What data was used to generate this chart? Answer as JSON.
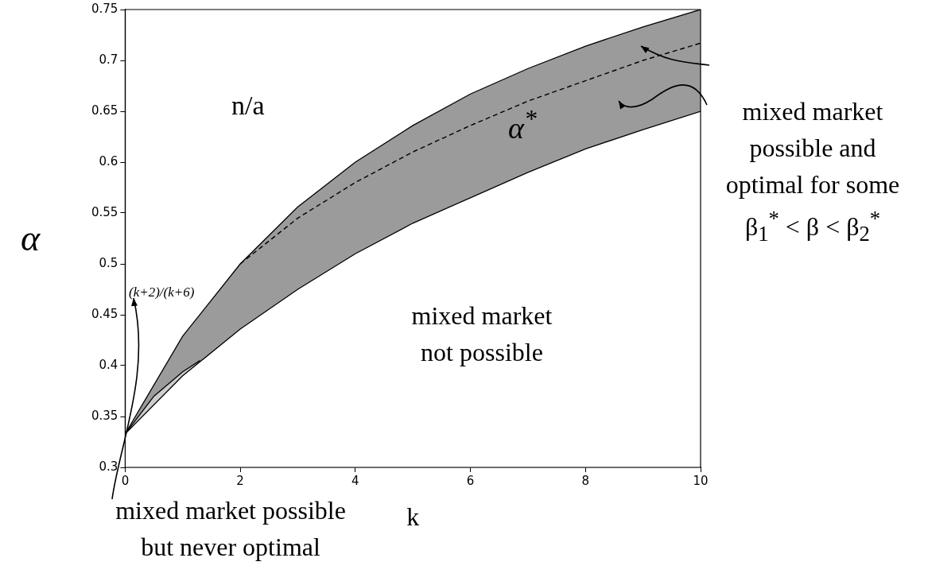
{
  "chart_data": {
    "type": "line",
    "xlabel": "k",
    "ylabel": "α",
    "xlim": [
      0,
      10
    ],
    "ylim": [
      0.3,
      0.75
    ],
    "xticks": [
      0,
      2,
      4,
      6,
      8,
      10
    ],
    "yticks": [
      0.3,
      0.35,
      0.4,
      0.45,
      0.5,
      0.55,
      0.6,
      0.65,
      0.7,
      0.75
    ],
    "grid": false,
    "legend": false,
    "marker": "none",
    "series": [
      {
        "type": "area",
        "color": "#9b9b9b",
        "x": [
          0,
          1,
          2,
          3,
          4,
          5,
          6,
          7,
          8,
          9,
          10
        ],
        "values": [
          0.333,
          0.429,
          0.5,
          0.556,
          0.6,
          0.636,
          0.667,
          0.692,
          0.714,
          0.733,
          0.75
        ]
      },
      {
        "type": "area",
        "color": "#cdcdcd",
        "x": [
          0,
          0.5,
          1,
          1.3
        ],
        "values": [
          0.333,
          0.37,
          0.394,
          0.405
        ]
      },
      {
        "type": "area",
        "color": "#ffffff",
        "x": [
          0,
          1,
          2,
          3,
          4,
          5,
          6,
          7,
          8,
          9,
          10
        ],
        "values": [
          0.333,
          0.39,
          0.436,
          0.475,
          0.51,
          0.54,
          0.565,
          0.59,
          0.613,
          0.632,
          0.65
        ]
      },
      {
        "color": "#000000",
        "x": [
          2,
          3,
          4,
          5,
          6,
          7,
          8,
          9,
          10
        ],
        "values": [
          0.5,
          0.545,
          0.58,
          0.61,
          0.636,
          0.66,
          0.68,
          0.7,
          0.717
        ],
        "line_style": "dashed"
      }
    ],
    "annotations": [
      "(k+2)/(k+6)",
      "α$^{*}$",
      "n/a",
      "mixed market not possible",
      "mixed market possible and optimal for some β$_{1}$$^{*}$ < β < β$_{2}$$^{*}$",
      "mixed market possible but never optimal"
    ]
  }
}
